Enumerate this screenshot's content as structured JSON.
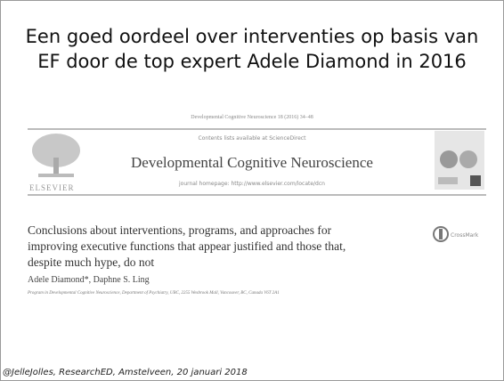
{
  "slide": {
    "title": [
      "Een goed oordeel over interventies op basis van",
      "EF door de top expert Adele Diamond in 2016"
    ],
    "paper": {
      "citation": "Developmental Cognitive Neuroscience 18 (2016) 34–48",
      "contents": "Contents lists available at ScienceDirect",
      "journal": "Developmental Cognitive Neuroscience",
      "homepage": "journal homepage: http://www.elsevier.com/locate/dcn",
      "publisher": "ELSEVIER",
      "article_title": [
        "Conclusions about interventions, programs, and approaches for",
        "improving executive functions that appear justified and those that,",
        "despite much hype, do not"
      ],
      "crossmark": "CrossMark",
      "authors": "Adele Diamond*, Daphne S. Ling",
      "affiliation": "Program in Developmental Cognitive Neuroscience, Department of Psychiatry, UBC, 2255 Wesbrook Mall, Vancouver, BC, Canada V6T 2A1"
    },
    "footer": "@JelleJolles, ResearchED, Amstelveen, 20 januari 2018"
  }
}
